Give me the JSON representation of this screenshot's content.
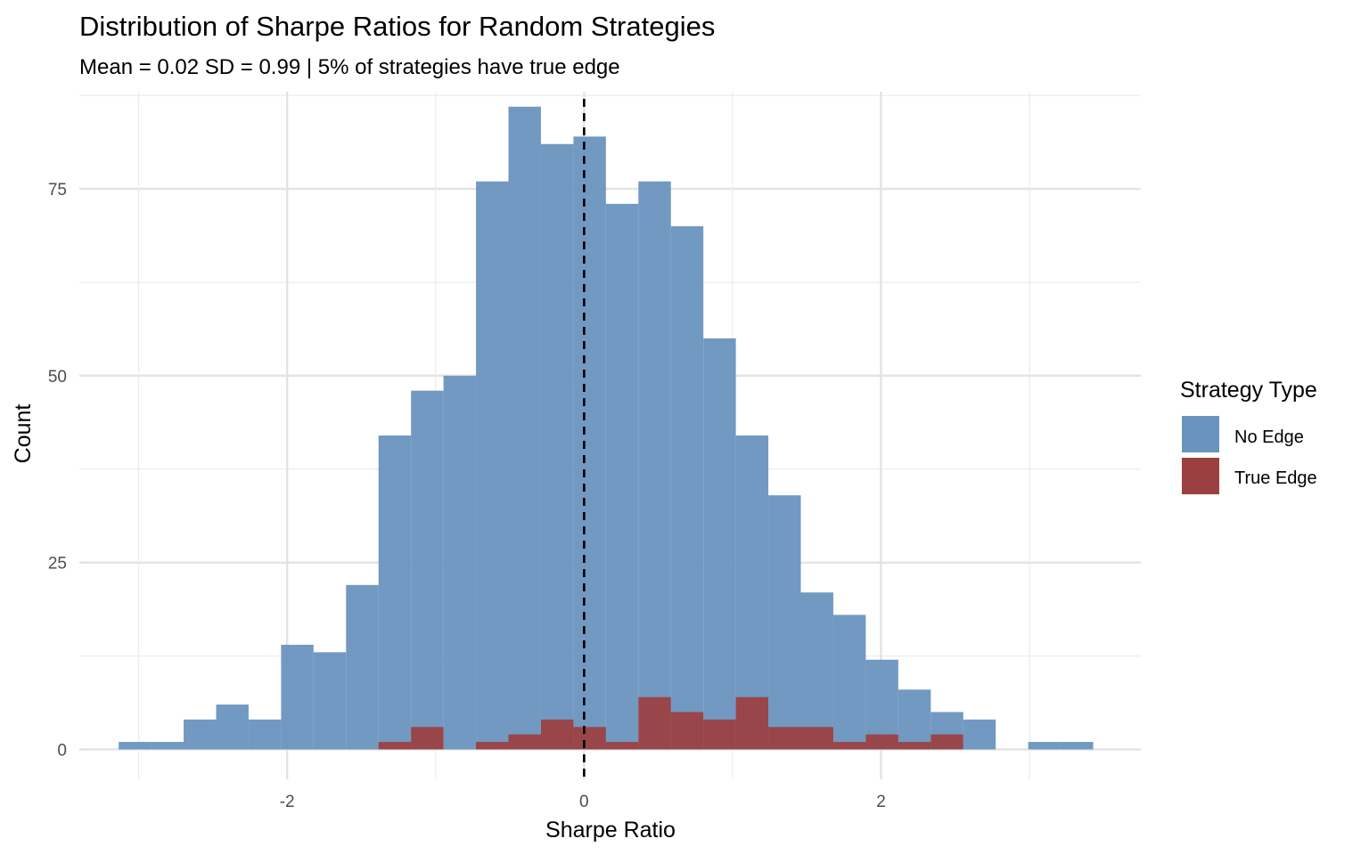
{
  "chart_data": {
    "type": "bar",
    "title": "Distribution of Sharpe Ratios for Random Strategies",
    "subtitle": "Mean = 0.02 SD = 0.99 | 5% of strategies have true edge",
    "xlabel": "Sharpe Ratio",
    "ylabel": "Count",
    "xlim": [
      -3.4,
      3.75
    ],
    "ylim": [
      -4,
      88
    ],
    "x_ticks": [
      -2,
      0,
      2
    ],
    "x_tick_labels": [
      "-2",
      "0",
      "2"
    ],
    "y_ticks": [
      0,
      25,
      50,
      75
    ],
    "y_tick_labels": [
      "0",
      "25",
      "50",
      "75"
    ],
    "grid": true,
    "legend_position": "right",
    "legend_title": "Strategy Type",
    "bin_width": 0.2188,
    "bin_start": -3.135,
    "reference_line": {
      "x": 0,
      "style": "dashed",
      "color": "#000000"
    },
    "series": [
      {
        "name": "No Edge",
        "color": "#6A93BF",
        "values": [
          1,
          1,
          4,
          6,
          4,
          14,
          13,
          22,
          42,
          48,
          50,
          76,
          86,
          81,
          82,
          73,
          76,
          70,
          55,
          42,
          34,
          21,
          18,
          12,
          8,
          5,
          4,
          0,
          1,
          1
        ]
      },
      {
        "name": "True Edge",
        "color": "#9B4040",
        "values": [
          0,
          0,
          0,
          0,
          0,
          0,
          0,
          0,
          1,
          3,
          0,
          1,
          2,
          4,
          3,
          1,
          7,
          5,
          4,
          7,
          3,
          3,
          1,
          2,
          1,
          2,
          0,
          0,
          0,
          0
        ]
      }
    ]
  }
}
